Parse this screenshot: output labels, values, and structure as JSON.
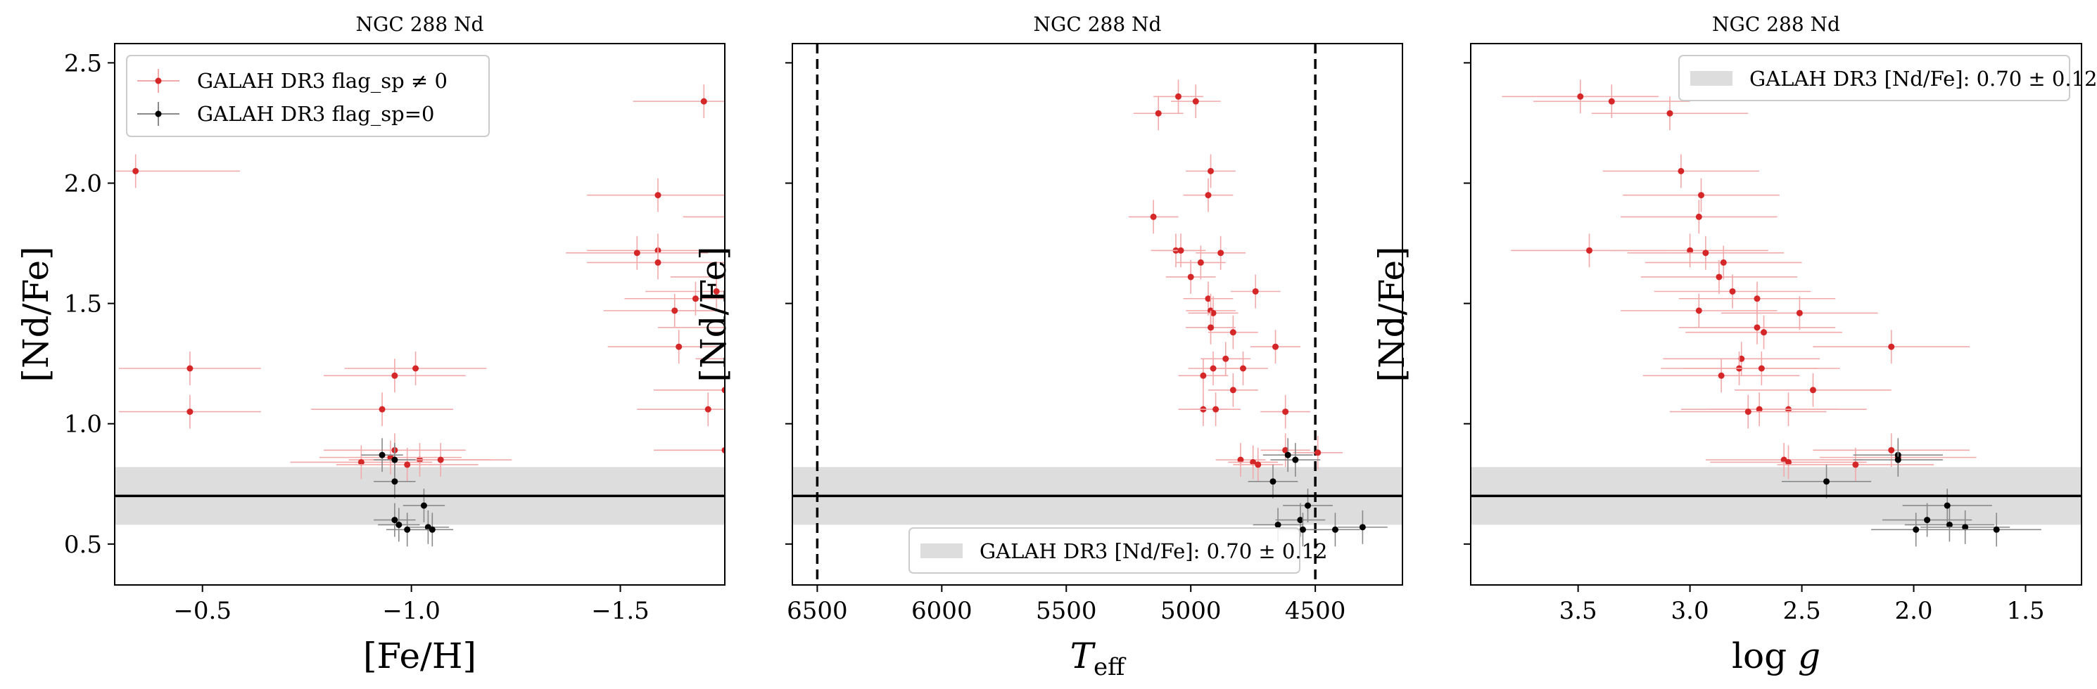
{
  "figure_title": "",
  "chart_data": [
    {
      "type": "scatter",
      "title": "NGC 288 Nd",
      "xlabel": "[Fe/H]",
      "ylabel": "[Nd/Fe]",
      "xlim": [
        -0.29,
        -1.75
      ],
      "ylim": [
        0.33,
        2.58
      ],
      "xticks": [
        -0.5,
        -1.0,
        -1.5
      ],
      "xtick_labels": [
        "−0.5",
        "−1.0",
        "−1.5"
      ],
      "yticks": [
        0.5,
        1.0,
        1.5,
        2.0,
        2.5
      ],
      "ytick_labels": [
        "0.5",
        "1.0",
        "1.5",
        "2.0",
        "2.5"
      ],
      "show_yticklabels": true,
      "reference": {
        "value": 0.7,
        "error": 0.12
      },
      "legend": {
        "position": "upper-left",
        "entries": [
          {
            "label": "GALAH DR3 flag_sp ≠ 0",
            "color": "#d62728",
            "marker": "errorbar"
          },
          {
            "label": "GALAH DR3 flag_sp=0",
            "color": "#000000",
            "marker": "errorbar"
          }
        ]
      },
      "series": [
        {
          "name": "GALAH DR3 flag_sp ≠ 0",
          "color": "#d62728",
          "points": [
            {
              "x": -1.7,
              "y": 2.34,
              "xerr": 0.17,
              "yerr": 0.07
            },
            {
              "x": -0.34,
              "y": 2.05,
              "xerr": 0.25,
              "yerr": 0.07
            },
            {
              "x": -1.59,
              "y": 1.95,
              "xerr": 0.17,
              "yerr": 0.07
            },
            {
              "x": -1.82,
              "y": 1.86,
              "xerr": 0.17,
              "yerr": 0.07
            },
            {
              "x": -1.88,
              "y": 1.72,
              "xerr": 0.17,
              "yerr": 0.07
            },
            {
              "x": -1.59,
              "y": 1.72,
              "xerr": 0.17,
              "yerr": 0.07
            },
            {
              "x": -1.54,
              "y": 1.71,
              "xerr": 0.17,
              "yerr": 0.07
            },
            {
              "x": -1.59,
              "y": 1.67,
              "xerr": 0.17,
              "yerr": 0.07
            },
            {
              "x": -1.79,
              "y": 1.61,
              "xerr": 0.17,
              "yerr": 0.07
            },
            {
              "x": -1.73,
              "y": 1.55,
              "xerr": 0.17,
              "yerr": 0.07
            },
            {
              "x": -1.68,
              "y": 1.52,
              "xerr": 0.17,
              "yerr": 0.07
            },
            {
              "x": -1.81,
              "y": 1.47,
              "xerr": 0.17,
              "yerr": 0.07
            },
            {
              "x": -1.63,
              "y": 1.47,
              "xerr": 0.17,
              "yerr": 0.07
            },
            {
              "x": -1.76,
              "y": 1.4,
              "xerr": 0.17,
              "yerr": 0.07
            },
            {
              "x": -1.88,
              "y": 1.38,
              "xerr": 0.17,
              "yerr": 0.07
            },
            {
              "x": -1.64,
              "y": 1.32,
              "xerr": 0.17,
              "yerr": 0.07
            },
            {
              "x": -1.85,
              "y": 1.27,
              "xerr": 0.17,
              "yerr": 0.07
            },
            {
              "x": -0.47,
              "y": 1.23,
              "xerr": 0.17,
              "yerr": 0.07
            },
            {
              "x": -1.01,
              "y": 1.23,
              "xerr": 0.17,
              "yerr": 0.07
            },
            {
              "x": -0.96,
              "y": 1.2,
              "xerr": 0.17,
              "yerr": 0.07
            },
            {
              "x": -1.75,
              "y": 1.14,
              "xerr": 0.17,
              "yerr": 0.07
            },
            {
              "x": -0.93,
              "y": 1.06,
              "xerr": 0.17,
              "yerr": 0.07
            },
            {
              "x": -1.71,
              "y": 1.06,
              "xerr": 0.17,
              "yerr": 0.07
            },
            {
              "x": -0.47,
              "y": 1.05,
              "xerr": 0.17,
              "yerr": 0.07
            },
            {
              "x": -1.75,
              "y": 0.89,
              "xerr": 0.17,
              "yerr": 0.07
            },
            {
              "x": -0.96,
              "y": 0.89,
              "xerr": 0.17,
              "yerr": 0.07
            },
            {
              "x": -1.02,
              "y": 0.85,
              "xerr": 0.17,
              "yerr": 0.07
            },
            {
              "x": -0.95,
              "y": 0.86,
              "xerr": 0.17,
              "yerr": 0.07
            },
            {
              "x": -1.07,
              "y": 0.85,
              "xerr": 0.17,
              "yerr": 0.07
            },
            {
              "x": -0.88,
              "y": 0.84,
              "xerr": 0.17,
              "yerr": 0.07
            },
            {
              "x": -0.99,
              "y": 0.83,
              "xerr": 0.17,
              "yerr": 0.07
            }
          ]
        },
        {
          "name": "GALAH DR3 flag_sp=0",
          "color": "#000000",
          "points": [
            {
              "x": -0.93,
              "y": 0.87,
              "xerr": 0.05,
              "yerr": 0.07
            },
            {
              "x": -0.96,
              "y": 0.85,
              "xerr": 0.05,
              "yerr": 0.07
            },
            {
              "x": -0.96,
              "y": 0.76,
              "xerr": 0.05,
              "yerr": 0.07
            },
            {
              "x": -1.03,
              "y": 0.66,
              "xerr": 0.05,
              "yerr": 0.07
            },
            {
              "x": -0.96,
              "y": 0.6,
              "xerr": 0.05,
              "yerr": 0.07
            },
            {
              "x": -0.97,
              "y": 0.58,
              "xerr": 0.05,
              "yerr": 0.07
            },
            {
              "x": -1.04,
              "y": 0.57,
              "xerr": 0.05,
              "yerr": 0.07
            },
            {
              "x": -1.05,
              "y": 0.56,
              "xerr": 0.05,
              "yerr": 0.07
            },
            {
              "x": -0.99,
              "y": 0.56,
              "xerr": 0.05,
              "yerr": 0.07
            }
          ]
        }
      ]
    },
    {
      "type": "scatter",
      "title": "NGC 288 Nd",
      "xlabel": "T_eff",
      "ylabel": "[Nd/Fe]",
      "xlim": [
        6600,
        4150
      ],
      "ylim": [
        0.33,
        2.58
      ],
      "xticks": [
        6500,
        6000,
        5500,
        5000,
        4500
      ],
      "xtick_labels": [
        "6500",
        "6000",
        "5500",
        "5000",
        "4500"
      ],
      "yticks": [
        0.5,
        1.0,
        1.5,
        2.0,
        2.5
      ],
      "ytick_labels": [
        "",
        "",
        "",
        "",
        ""
      ],
      "show_yticklabels": false,
      "vlines": [
        6500,
        4500
      ],
      "reference": {
        "value": 0.7,
        "error": 0.12
      },
      "legend": {
        "position": "lower-center",
        "entries": [
          {
            "label": "GALAH DR3 [Nd/Fe]: 0.70 ± 0.12",
            "color": "#dddddd",
            "marker": "patch"
          }
        ]
      },
      "series": [
        {
          "name": "GALAH DR3 flag_sp ≠ 0",
          "color": "#d62728",
          "points": [
            {
              "x": 5050,
              "y": 2.36,
              "xerr": 100,
              "yerr": 0.07
            },
            {
              "x": 4980,
              "y": 2.34,
              "xerr": 100,
              "yerr": 0.07
            },
            {
              "x": 5130,
              "y": 2.29,
              "xerr": 100,
              "yerr": 0.07
            },
            {
              "x": 4920,
              "y": 2.05,
              "xerr": 100,
              "yerr": 0.07
            },
            {
              "x": 4930,
              "y": 1.95,
              "xerr": 100,
              "yerr": 0.07
            },
            {
              "x": 5150,
              "y": 1.86,
              "xerr": 100,
              "yerr": 0.07
            },
            {
              "x": 5060,
              "y": 1.72,
              "xerr": 100,
              "yerr": 0.07
            },
            {
              "x": 5040,
              "y": 1.72,
              "xerr": 100,
              "yerr": 0.07
            },
            {
              "x": 4880,
              "y": 1.71,
              "xerr": 100,
              "yerr": 0.07
            },
            {
              "x": 4960,
              "y": 1.67,
              "xerr": 100,
              "yerr": 0.07
            },
            {
              "x": 5000,
              "y": 1.61,
              "xerr": 100,
              "yerr": 0.07
            },
            {
              "x": 4740,
              "y": 1.55,
              "xerr": 100,
              "yerr": 0.07
            },
            {
              "x": 4930,
              "y": 1.52,
              "xerr": 100,
              "yerr": 0.07
            },
            {
              "x": 4920,
              "y": 1.47,
              "xerr": 100,
              "yerr": 0.07
            },
            {
              "x": 4910,
              "y": 1.46,
              "xerr": 100,
              "yerr": 0.07
            },
            {
              "x": 4920,
              "y": 1.4,
              "xerr": 100,
              "yerr": 0.07
            },
            {
              "x": 4830,
              "y": 1.38,
              "xerr": 100,
              "yerr": 0.07
            },
            {
              "x": 4660,
              "y": 1.32,
              "xerr": 100,
              "yerr": 0.07
            },
            {
              "x": 4860,
              "y": 1.27,
              "xerr": 100,
              "yerr": 0.07
            },
            {
              "x": 4910,
              "y": 1.23,
              "xerr": 100,
              "yerr": 0.07
            },
            {
              "x": 4790,
              "y": 1.23,
              "xerr": 100,
              "yerr": 0.07
            },
            {
              "x": 4950,
              "y": 1.2,
              "xerr": 100,
              "yerr": 0.07
            },
            {
              "x": 4830,
              "y": 1.14,
              "xerr": 100,
              "yerr": 0.07
            },
            {
              "x": 4950,
              "y": 1.06,
              "xerr": 100,
              "yerr": 0.07
            },
            {
              "x": 4900,
              "y": 1.06,
              "xerr": 100,
              "yerr": 0.07
            },
            {
              "x": 4620,
              "y": 1.05,
              "xerr": 100,
              "yerr": 0.07
            },
            {
              "x": 4620,
              "y": 0.89,
              "xerr": 100,
              "yerr": 0.07
            },
            {
              "x": 4490,
              "y": 0.88,
              "xerr": 100,
              "yerr": 0.07
            },
            {
              "x": 4800,
              "y": 0.85,
              "xerr": 100,
              "yerr": 0.07
            },
            {
              "x": 4750,
              "y": 0.84,
              "xerr": 100,
              "yerr": 0.07
            },
            {
              "x": 4730,
              "y": 0.83,
              "xerr": 100,
              "yerr": 0.07
            }
          ]
        },
        {
          "name": "GALAH DR3 flag_sp=0",
          "color": "#000000",
          "points": [
            {
              "x": 4610,
              "y": 0.87,
              "xerr": 100,
              "yerr": 0.07
            },
            {
              "x": 4580,
              "y": 0.85,
              "xerr": 100,
              "yerr": 0.07
            },
            {
              "x": 4670,
              "y": 0.76,
              "xerr": 100,
              "yerr": 0.07
            },
            {
              "x": 4530,
              "y": 0.66,
              "xerr": 100,
              "yerr": 0.07
            },
            {
              "x": 4560,
              "y": 0.6,
              "xerr": 100,
              "yerr": 0.07
            },
            {
              "x": 4650,
              "y": 0.58,
              "xerr": 100,
              "yerr": 0.07
            },
            {
              "x": 4310,
              "y": 0.57,
              "xerr": 100,
              "yerr": 0.07
            },
            {
              "x": 4420,
              "y": 0.56,
              "xerr": 100,
              "yerr": 0.07
            },
            {
              "x": 4550,
              "y": 0.56,
              "xerr": 100,
              "yerr": 0.07
            }
          ]
        }
      ]
    },
    {
      "type": "scatter",
      "title": "NGC 288 Nd",
      "xlabel": "log g",
      "ylabel": "[Nd/Fe]",
      "xlim": [
        3.98,
        1.25
      ],
      "ylim": [
        0.33,
        2.58
      ],
      "xticks": [
        3.5,
        3.0,
        2.5,
        2.0,
        1.5
      ],
      "xtick_labels": [
        "3.5",
        "3.0",
        "2.5",
        "2.0",
        "1.5"
      ],
      "yticks": [
        0.5,
        1.0,
        1.5,
        2.0,
        2.5
      ],
      "ytick_labels": [
        "",
        "",
        "",
        "",
        ""
      ],
      "show_yticklabels": false,
      "reference": {
        "value": 0.7,
        "error": 0.12
      },
      "legend": {
        "position": "upper-right",
        "entries": [
          {
            "label": "GALAH DR3 [Nd/Fe]: 0.70 ± 0.12",
            "color": "#dddddd",
            "marker": "patch"
          }
        ]
      },
      "series": [
        {
          "name": "GALAH DR3 flag_sp ≠ 0",
          "color": "#d62728",
          "points": [
            {
              "x": 3.49,
              "y": 2.36,
              "xerr": 0.35,
              "yerr": 0.07
            },
            {
              "x": 3.35,
              "y": 2.34,
              "xerr": 0.35,
              "yerr": 0.07
            },
            {
              "x": 3.09,
              "y": 2.29,
              "xerr": 0.35,
              "yerr": 0.07
            },
            {
              "x": 3.04,
              "y": 2.05,
              "xerr": 0.35,
              "yerr": 0.07
            },
            {
              "x": 2.95,
              "y": 1.95,
              "xerr": 0.35,
              "yerr": 0.07
            },
            {
              "x": 2.96,
              "y": 1.86,
              "xerr": 0.35,
              "yerr": 0.07
            },
            {
              "x": 3.45,
              "y": 1.72,
              "xerr": 0.35,
              "yerr": 0.07
            },
            {
              "x": 3.0,
              "y": 1.72,
              "xerr": 0.35,
              "yerr": 0.07
            },
            {
              "x": 2.93,
              "y": 1.71,
              "xerr": 0.35,
              "yerr": 0.07
            },
            {
              "x": 2.85,
              "y": 1.67,
              "xerr": 0.35,
              "yerr": 0.07
            },
            {
              "x": 2.87,
              "y": 1.61,
              "xerr": 0.35,
              "yerr": 0.07
            },
            {
              "x": 2.81,
              "y": 1.55,
              "xerr": 0.35,
              "yerr": 0.07
            },
            {
              "x": 2.7,
              "y": 1.52,
              "xerr": 0.35,
              "yerr": 0.07
            },
            {
              "x": 2.96,
              "y": 1.47,
              "xerr": 0.35,
              "yerr": 0.07
            },
            {
              "x": 2.51,
              "y": 1.46,
              "xerr": 0.35,
              "yerr": 0.07
            },
            {
              "x": 2.7,
              "y": 1.4,
              "xerr": 0.35,
              "yerr": 0.07
            },
            {
              "x": 2.67,
              "y": 1.38,
              "xerr": 0.35,
              "yerr": 0.07
            },
            {
              "x": 2.1,
              "y": 1.32,
              "xerr": 0.35,
              "yerr": 0.07
            },
            {
              "x": 2.77,
              "y": 1.27,
              "xerr": 0.35,
              "yerr": 0.07
            },
            {
              "x": 2.78,
              "y": 1.23,
              "xerr": 0.35,
              "yerr": 0.07
            },
            {
              "x": 2.68,
              "y": 1.23,
              "xerr": 0.35,
              "yerr": 0.07
            },
            {
              "x": 2.86,
              "y": 1.2,
              "xerr": 0.35,
              "yerr": 0.07
            },
            {
              "x": 2.45,
              "y": 1.14,
              "xerr": 0.35,
              "yerr": 0.07
            },
            {
              "x": 2.56,
              "y": 1.06,
              "xerr": 0.35,
              "yerr": 0.07
            },
            {
              "x": 2.69,
              "y": 1.06,
              "xerr": 0.35,
              "yerr": 0.07
            },
            {
              "x": 2.74,
              "y": 1.05,
              "xerr": 0.35,
              "yerr": 0.07
            },
            {
              "x": 2.1,
              "y": 0.89,
              "xerr": 0.35,
              "yerr": 0.07
            },
            {
              "x": 2.58,
              "y": 0.85,
              "xerr": 0.35,
              "yerr": 0.07
            },
            {
              "x": 2.56,
              "y": 0.84,
              "xerr": 0.35,
              "yerr": 0.07
            },
            {
              "x": 2.26,
              "y": 0.83,
              "xerr": 0.35,
              "yerr": 0.07
            },
            {
              "x": 2.07,
              "y": 0.86,
              "xerr": 0.35,
              "yerr": 0.07
            }
          ]
        },
        {
          "name": "GALAH DR3 flag_sp=0",
          "color": "#000000",
          "points": [
            {
              "x": 2.07,
              "y": 0.87,
              "xerr": 0.2,
              "yerr": 0.07
            },
            {
              "x": 2.07,
              "y": 0.85,
              "xerr": 0.2,
              "yerr": 0.07
            },
            {
              "x": 2.39,
              "y": 0.76,
              "xerr": 0.2,
              "yerr": 0.07
            },
            {
              "x": 1.85,
              "y": 0.66,
              "xerr": 0.2,
              "yerr": 0.07
            },
            {
              "x": 1.94,
              "y": 0.6,
              "xerr": 0.2,
              "yerr": 0.07
            },
            {
              "x": 1.84,
              "y": 0.58,
              "xerr": 0.2,
              "yerr": 0.07
            },
            {
              "x": 1.77,
              "y": 0.57,
              "xerr": 0.2,
              "yerr": 0.07
            },
            {
              "x": 1.99,
              "y": 0.56,
              "xerr": 0.2,
              "yerr": 0.07
            },
            {
              "x": 1.63,
              "y": 0.56,
              "xerr": 0.2,
              "yerr": 0.07
            }
          ]
        }
      ]
    }
  ]
}
